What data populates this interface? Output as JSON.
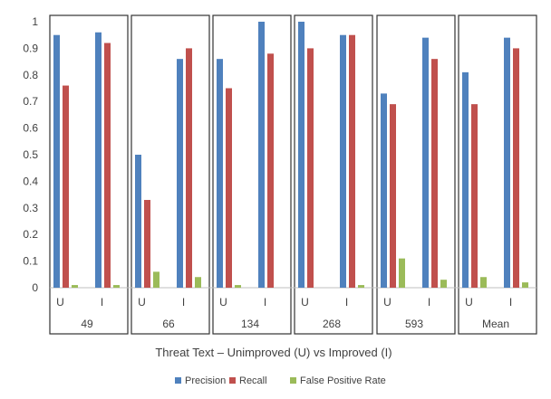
{
  "chart_data": {
    "type": "bar",
    "xlabel": "Threat Text – Unimproved (U) vs Improved (I)",
    "ylabel": "",
    "ylim": [
      0,
      1
    ],
    "yticks": [
      0,
      0.1,
      0.2,
      0.3,
      0.4,
      0.5,
      0.6,
      0.7,
      0.8,
      0.9,
      1
    ],
    "ytick_labels": [
      "0",
      "0.1",
      "0.2",
      "0.3",
      "0.4",
      "0.5",
      "0.6",
      "0.7",
      "0.8",
      "0.9",
      "1"
    ],
    "grid": false,
    "legend_position": "bottom",
    "groups": [
      "49",
      "66",
      "134",
      "268",
      "593",
      "Mean"
    ],
    "subcategories": [
      "U",
      "I"
    ],
    "series": [
      {
        "name": "Precision",
        "color": "#4f81bd",
        "values": [
          [
            0.95,
            0.96
          ],
          [
            0.5,
            0.86
          ],
          [
            0.86,
            1.0
          ],
          [
            1.0,
            0.95
          ],
          [
            0.73,
            0.94
          ],
          [
            0.81,
            0.94
          ]
        ]
      },
      {
        "name": "Recall",
        "color": "#c0504d",
        "values": [
          [
            0.76,
            0.92
          ],
          [
            0.33,
            0.9
          ],
          [
            0.75,
            0.88
          ],
          [
            0.9,
            0.95
          ],
          [
            0.69,
            0.86
          ],
          [
            0.69,
            0.9
          ]
        ]
      },
      {
        "name": "False Positive Rate",
        "color": "#9bbb59",
        "values": [
          [
            0.01,
            0.01
          ],
          [
            0.06,
            0.04
          ],
          [
            0.01,
            0.0
          ],
          [
            0.0,
            0.01
          ],
          [
            0.11,
            0.03
          ],
          [
            0.04,
            0.02
          ]
        ]
      }
    ]
  }
}
